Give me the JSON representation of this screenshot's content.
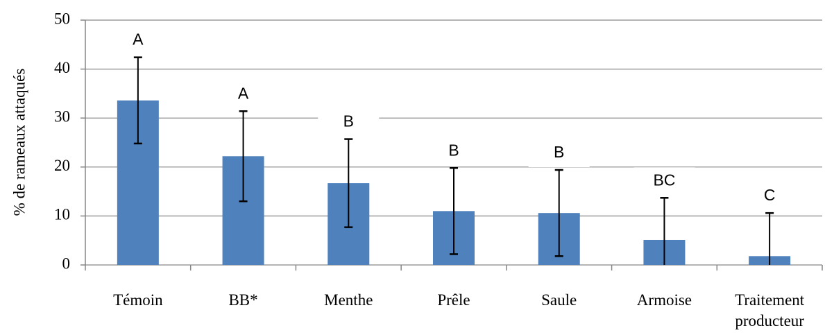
{
  "chart_data": {
    "type": "bar",
    "y_label": "% de rameaux attaqués",
    "categories": [
      "Témoin",
      "BB*",
      "Menthe",
      "Prêle",
      "Saule",
      "Armoise",
      "Traitement producteur"
    ],
    "values": [
      33.6,
      22.2,
      16.7,
      11.0,
      10.6,
      5.1,
      1.8
    ],
    "errors": [
      8.8,
      9.2,
      9.0,
      8.8,
      8.8,
      8.6,
      8.8
    ],
    "annotations": [
      "A",
      "A",
      "B",
      "B",
      "B",
      "BC",
      "C"
    ],
    "color": "#4f81bd",
    "ylim": [
      0,
      50
    ],
    "yticks": [
      0,
      10,
      20,
      30,
      40,
      50
    ],
    "grid": true
  }
}
